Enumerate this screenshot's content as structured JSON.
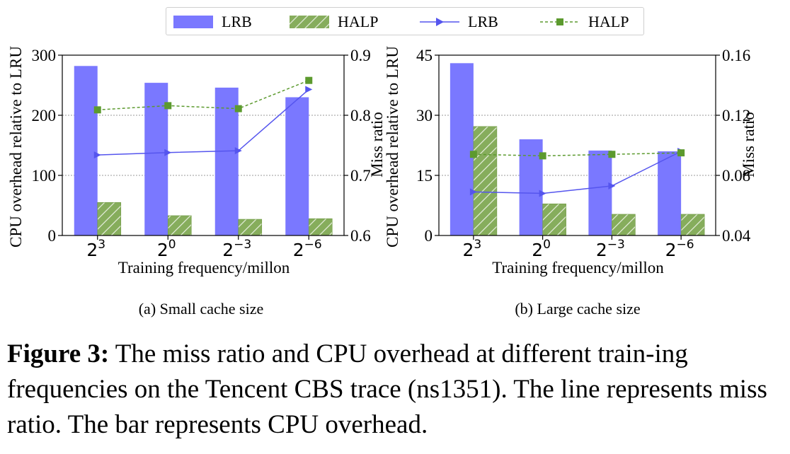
{
  "legend": {
    "items": [
      {
        "label": "LRB",
        "kind": "bar",
        "color": "#7a78ff",
        "hatch": false
      },
      {
        "label": "HALP",
        "kind": "bar",
        "color": "#86ad5c",
        "hatch": true
      },
      {
        "label": "LRB",
        "kind": "line",
        "color": "#5555ee",
        "marker": "triangle-right"
      },
      {
        "label": "HALP",
        "kind": "line",
        "color": "#5c9a2e",
        "marker": "square",
        "dashed": true
      }
    ]
  },
  "chart_data": [
    {
      "type": "bar",
      "caption": "(a) Small cache size",
      "categories": [
        "2^3",
        "2^0",
        "2^-3",
        "2^-6"
      ],
      "tick_base": "2",
      "tick_exponents": [
        "3",
        "0",
        "−3",
        "−6"
      ],
      "xlabel": "Training frequency/millon",
      "ylabel": "CPU overhead relative to LRU",
      "ylabel_right": "Miss ratio",
      "ylim": [
        0,
        300
      ],
      "yticks": [
        "0",
        "100",
        "200",
        "300"
      ],
      "y2lim": [
        0.6,
        0.9
      ],
      "y2ticks": [
        "0.6",
        "0.7",
        "0.8",
        "0.9"
      ],
      "grid": "horizontal dotted at y-ticks",
      "bar_series": [
        {
          "name": "LRB",
          "values": [
            282,
            254,
            246,
            230
          ]
        },
        {
          "name": "HALP",
          "values": [
            55,
            33,
            27,
            28
          ]
        }
      ],
      "line_series": [
        {
          "name": "LRB",
          "values": [
            0.734,
            0.738,
            0.741,
            0.843
          ]
        },
        {
          "name": "HALP",
          "values": [
            0.809,
            0.816,
            0.811,
            0.858
          ]
        }
      ]
    },
    {
      "type": "bar",
      "caption": "(b) Large cache size",
      "categories": [
        "2^3",
        "2^0",
        "2^-3",
        "2^-6"
      ],
      "tick_base": "2",
      "tick_exponents": [
        "3",
        "0",
        "−3",
        "−6"
      ],
      "xlabel": "Training frequency/millon",
      "ylabel": "CPU overhead relative to LRU",
      "ylabel_right": "Miss ratio",
      "ylim": [
        0,
        45
      ],
      "yticks": [
        "0",
        "15",
        "30",
        "45"
      ],
      "y2lim": [
        0.04,
        0.16
      ],
      "y2ticks": [
        "0.04",
        "0.08",
        "0.12",
        "0.16"
      ],
      "grid": "horizontal dotted at y-ticks",
      "bar_series": [
        {
          "name": "LRB",
          "values": [
            43,
            24,
            21.2,
            21
          ]
        },
        {
          "name": "HALP",
          "values": [
            27.2,
            7.9,
            5.3,
            5.3
          ]
        }
      ],
      "line_series": [
        {
          "name": "LRB",
          "values": [
            0.069,
            0.068,
            0.073,
            0.096
          ]
        },
        {
          "name": "HALP",
          "values": [
            0.094,
            0.093,
            0.094,
            0.095
          ]
        }
      ]
    }
  ],
  "figure_caption": {
    "label": "Figure 3:",
    "text": " The miss ratio and CPU overhead at different train-ing frequencies on the Tencent CBS trace (ns1351). The line represents miss ratio. The bar represents CPU overhead."
  }
}
